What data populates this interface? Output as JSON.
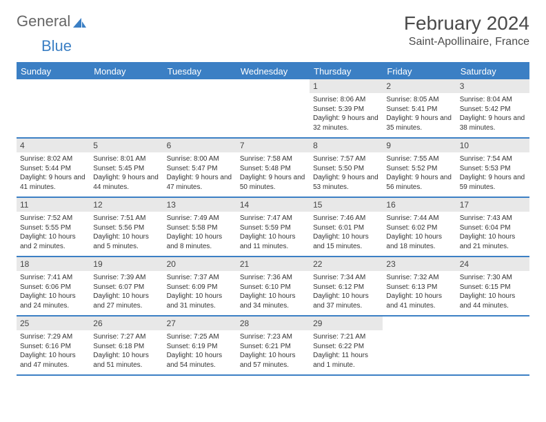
{
  "logo": {
    "text_general": "General",
    "text_blue": "Blue"
  },
  "title": "February 2024",
  "location": "Saint-Apollinaire, France",
  "weekdays": [
    "Sunday",
    "Monday",
    "Tuesday",
    "Wednesday",
    "Thursday",
    "Friday",
    "Saturday"
  ],
  "colors": {
    "accent": "#3b7fc4",
    "text": "#333333",
    "header_text": "#4a4a4a",
    "day_header_bg": "#e8e8e8",
    "background": "#ffffff"
  },
  "weeks": [
    [
      {
        "n": "",
        "sunrise": "",
        "sunset": "",
        "daylight": ""
      },
      {
        "n": "",
        "sunrise": "",
        "sunset": "",
        "daylight": ""
      },
      {
        "n": "",
        "sunrise": "",
        "sunset": "",
        "daylight": ""
      },
      {
        "n": "",
        "sunrise": "",
        "sunset": "",
        "daylight": ""
      },
      {
        "n": "1",
        "sunrise": "Sunrise: 8:06 AM",
        "sunset": "Sunset: 5:39 PM",
        "daylight": "Daylight: 9 hours and 32 minutes."
      },
      {
        "n": "2",
        "sunrise": "Sunrise: 8:05 AM",
        "sunset": "Sunset: 5:41 PM",
        "daylight": "Daylight: 9 hours and 35 minutes."
      },
      {
        "n": "3",
        "sunrise": "Sunrise: 8:04 AM",
        "sunset": "Sunset: 5:42 PM",
        "daylight": "Daylight: 9 hours and 38 minutes."
      }
    ],
    [
      {
        "n": "4",
        "sunrise": "Sunrise: 8:02 AM",
        "sunset": "Sunset: 5:44 PM",
        "daylight": "Daylight: 9 hours and 41 minutes."
      },
      {
        "n": "5",
        "sunrise": "Sunrise: 8:01 AM",
        "sunset": "Sunset: 5:45 PM",
        "daylight": "Daylight: 9 hours and 44 minutes."
      },
      {
        "n": "6",
        "sunrise": "Sunrise: 8:00 AM",
        "sunset": "Sunset: 5:47 PM",
        "daylight": "Daylight: 9 hours and 47 minutes."
      },
      {
        "n": "7",
        "sunrise": "Sunrise: 7:58 AM",
        "sunset": "Sunset: 5:48 PM",
        "daylight": "Daylight: 9 hours and 50 minutes."
      },
      {
        "n": "8",
        "sunrise": "Sunrise: 7:57 AM",
        "sunset": "Sunset: 5:50 PM",
        "daylight": "Daylight: 9 hours and 53 minutes."
      },
      {
        "n": "9",
        "sunrise": "Sunrise: 7:55 AM",
        "sunset": "Sunset: 5:52 PM",
        "daylight": "Daylight: 9 hours and 56 minutes."
      },
      {
        "n": "10",
        "sunrise": "Sunrise: 7:54 AM",
        "sunset": "Sunset: 5:53 PM",
        "daylight": "Daylight: 9 hours and 59 minutes."
      }
    ],
    [
      {
        "n": "11",
        "sunrise": "Sunrise: 7:52 AM",
        "sunset": "Sunset: 5:55 PM",
        "daylight": "Daylight: 10 hours and 2 minutes."
      },
      {
        "n": "12",
        "sunrise": "Sunrise: 7:51 AM",
        "sunset": "Sunset: 5:56 PM",
        "daylight": "Daylight: 10 hours and 5 minutes."
      },
      {
        "n": "13",
        "sunrise": "Sunrise: 7:49 AM",
        "sunset": "Sunset: 5:58 PM",
        "daylight": "Daylight: 10 hours and 8 minutes."
      },
      {
        "n": "14",
        "sunrise": "Sunrise: 7:47 AM",
        "sunset": "Sunset: 5:59 PM",
        "daylight": "Daylight: 10 hours and 11 minutes."
      },
      {
        "n": "15",
        "sunrise": "Sunrise: 7:46 AM",
        "sunset": "Sunset: 6:01 PM",
        "daylight": "Daylight: 10 hours and 15 minutes."
      },
      {
        "n": "16",
        "sunrise": "Sunrise: 7:44 AM",
        "sunset": "Sunset: 6:02 PM",
        "daylight": "Daylight: 10 hours and 18 minutes."
      },
      {
        "n": "17",
        "sunrise": "Sunrise: 7:43 AM",
        "sunset": "Sunset: 6:04 PM",
        "daylight": "Daylight: 10 hours and 21 minutes."
      }
    ],
    [
      {
        "n": "18",
        "sunrise": "Sunrise: 7:41 AM",
        "sunset": "Sunset: 6:06 PM",
        "daylight": "Daylight: 10 hours and 24 minutes."
      },
      {
        "n": "19",
        "sunrise": "Sunrise: 7:39 AM",
        "sunset": "Sunset: 6:07 PM",
        "daylight": "Daylight: 10 hours and 27 minutes."
      },
      {
        "n": "20",
        "sunrise": "Sunrise: 7:37 AM",
        "sunset": "Sunset: 6:09 PM",
        "daylight": "Daylight: 10 hours and 31 minutes."
      },
      {
        "n": "21",
        "sunrise": "Sunrise: 7:36 AM",
        "sunset": "Sunset: 6:10 PM",
        "daylight": "Daylight: 10 hours and 34 minutes."
      },
      {
        "n": "22",
        "sunrise": "Sunrise: 7:34 AM",
        "sunset": "Sunset: 6:12 PM",
        "daylight": "Daylight: 10 hours and 37 minutes."
      },
      {
        "n": "23",
        "sunrise": "Sunrise: 7:32 AM",
        "sunset": "Sunset: 6:13 PM",
        "daylight": "Daylight: 10 hours and 41 minutes."
      },
      {
        "n": "24",
        "sunrise": "Sunrise: 7:30 AM",
        "sunset": "Sunset: 6:15 PM",
        "daylight": "Daylight: 10 hours and 44 minutes."
      }
    ],
    [
      {
        "n": "25",
        "sunrise": "Sunrise: 7:29 AM",
        "sunset": "Sunset: 6:16 PM",
        "daylight": "Daylight: 10 hours and 47 minutes."
      },
      {
        "n": "26",
        "sunrise": "Sunrise: 7:27 AM",
        "sunset": "Sunset: 6:18 PM",
        "daylight": "Daylight: 10 hours and 51 minutes."
      },
      {
        "n": "27",
        "sunrise": "Sunrise: 7:25 AM",
        "sunset": "Sunset: 6:19 PM",
        "daylight": "Daylight: 10 hours and 54 minutes."
      },
      {
        "n": "28",
        "sunrise": "Sunrise: 7:23 AM",
        "sunset": "Sunset: 6:21 PM",
        "daylight": "Daylight: 10 hours and 57 minutes."
      },
      {
        "n": "29",
        "sunrise": "Sunrise: 7:21 AM",
        "sunset": "Sunset: 6:22 PM",
        "daylight": "Daylight: 11 hours and 1 minute."
      },
      {
        "n": "",
        "sunrise": "",
        "sunset": "",
        "daylight": ""
      },
      {
        "n": "",
        "sunrise": "",
        "sunset": "",
        "daylight": ""
      }
    ]
  ]
}
